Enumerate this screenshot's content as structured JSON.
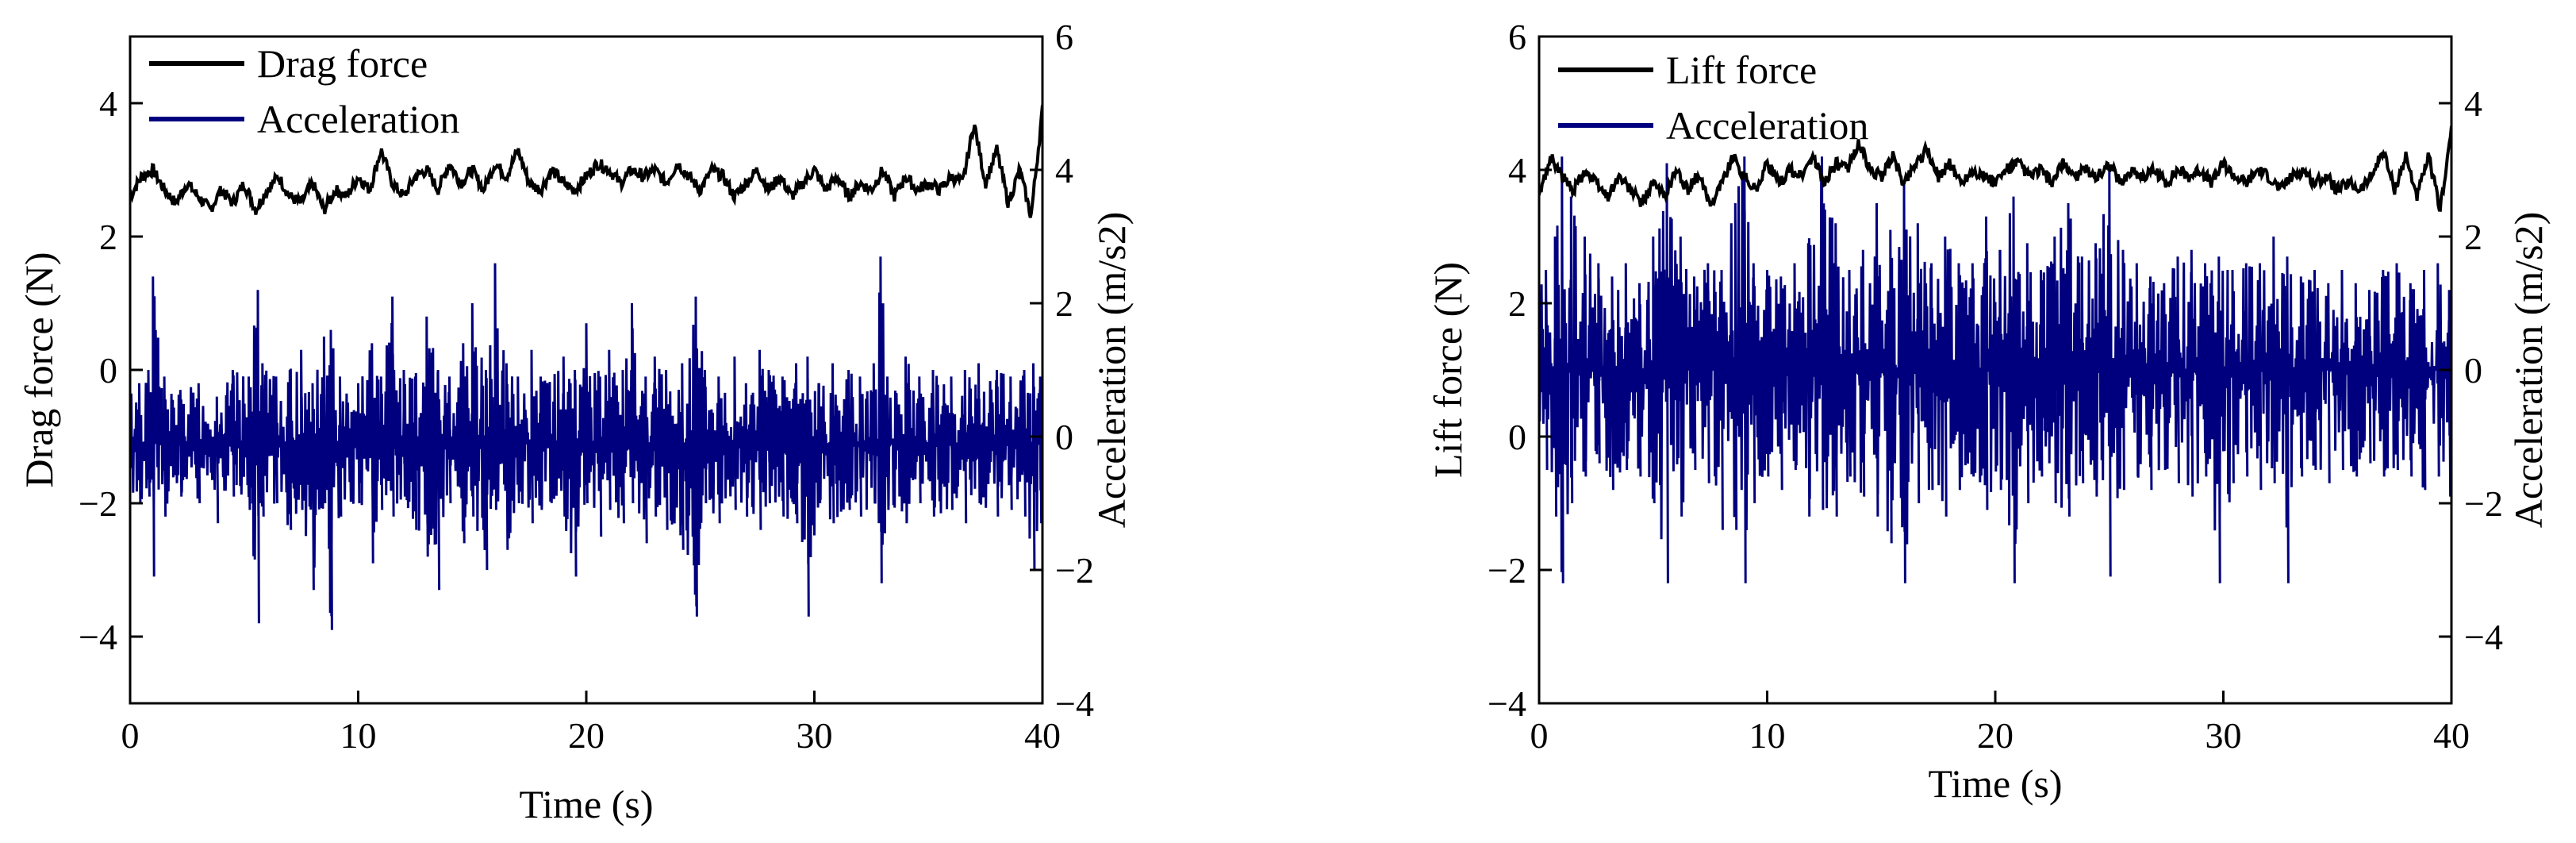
{
  "colors": {
    "force": "#000000",
    "acceleration": "#00007F"
  },
  "chart_data": [
    {
      "type": "line",
      "xlabel": "Time (s)",
      "ylabel_left": "Drag force (N)",
      "ylabel_right": "Acceleration (m/s2)",
      "xlim": [
        0,
        40
      ],
      "ylim_left": [
        -5,
        5
      ],
      "ylim_right": [
        -4,
        6
      ],
      "x_ticks": [
        0,
        10,
        20,
        30,
        40
      ],
      "y_ticks_left": [
        -4,
        -2,
        0,
        2,
        4
      ],
      "y_ticks_right": [
        -4,
        -2,
        0,
        2,
        4,
        6
      ],
      "legend_position": "top-left",
      "series": [
        {
          "name": "Drag force",
          "axis": "left",
          "color": "#000000",
          "x": [
            0,
            0.5,
            1,
            1.5,
            2,
            2.5,
            3,
            3.5,
            4,
            4.5,
            5,
            5.5,
            6,
            6.5,
            7,
            7.5,
            8,
            8.5,
            9,
            9.5,
            10,
            10.5,
            11,
            11.5,
            12,
            12.5,
            13,
            13.5,
            14,
            14.5,
            15,
            15.5,
            16,
            16.5,
            17,
            17.5,
            18,
            18.5,
            19,
            19.5,
            20,
            20.5,
            21,
            21.5,
            22,
            22.5,
            23,
            23.5,
            24,
            24.5,
            25,
            25.5,
            26,
            26.5,
            27,
            27.5,
            28,
            28.5,
            29,
            29.5,
            30,
            30.5,
            31,
            31.5,
            32,
            32.5,
            33,
            33.5,
            34,
            34.5,
            35,
            35.5,
            36,
            36.5,
            37,
            37.5,
            38,
            38.5,
            39,
            39.5,
            40
          ],
          "y": [
            2.6,
            2.9,
            3.0,
            2.7,
            2.5,
            2.8,
            2.6,
            2.4,
            2.7,
            2.5,
            2.8,
            2.4,
            2.7,
            2.9,
            2.6,
            2.5,
            2.8,
            2.4,
            2.7,
            2.6,
            2.9,
            2.7,
            3.3,
            2.8,
            2.6,
            2.9,
            3.0,
            2.7,
            3.1,
            2.8,
            3.0,
            2.7,
            3.1,
            2.9,
            3.3,
            2.8,
            2.7,
            3.0,
            2.8,
            2.7,
            2.9,
            3.1,
            3.0,
            2.8,
            3.0,
            2.9,
            3.0,
            2.8,
            3.1,
            2.9,
            2.7,
            3.0,
            2.9,
            2.6,
            2.8,
            3.0,
            2.7,
            2.9,
            2.6,
            2.8,
            3.0,
            2.7,
            2.9,
            2.6,
            2.8,
            2.7,
            3.0,
            2.6,
            2.9,
            2.7,
            2.8,
            2.7,
            2.9,
            2.8,
            3.7,
            2.8,
            3.3,
            2.5,
            3.0,
            2.3,
            3.9
          ]
        },
        {
          "name": "Acceleration",
          "axis": "right",
          "color": "#00007F",
          "baseline": -0.1,
          "x": [
            0.4,
            0.8,
            1.0,
            1.5,
            2.2,
            3.0,
            3.8,
            4.5,
            5.2,
            5.6,
            5.8,
            6.4,
            7.0,
            7.5,
            8.0,
            8.5,
            8.8,
            9.2,
            10.0,
            10.6,
            11.0,
            11.5,
            12.0,
            12.5,
            13.0,
            13.5,
            14.0,
            14.6,
            15.0,
            15.6,
            16.0,
            16.5,
            17.0,
            17.6,
            18.0,
            19.0,
            19.5,
            20.0,
            20.6,
            21.0,
            21.6,
            22.0,
            22.6,
            23.0,
            23.5,
            24.2,
            24.8,
            25.2,
            25.8,
            26.5,
            27.0,
            27.6,
            28.0,
            28.6,
            29.2,
            29.7,
            30.2,
            30.8,
            31.5,
            32.0,
            32.6,
            32.9,
            33.2,
            34.0,
            34.6,
            35.2,
            36.0,
            36.6,
            37.2,
            38.0,
            38.6,
            39.2,
            39.6,
            39.9
          ],
          "max": [
            0.8,
            1.0,
            2.4,
            0.9,
            0.7,
            0.8,
            0.6,
            1.0,
            0.9,
            2.2,
            1.1,
            0.9,
            1.0,
            1.3,
            0.8,
            1.5,
            1.6,
            0.9,
            0.8,
            1.4,
            0.9,
            2.1,
            1.0,
            0.9,
            1.8,
            1.0,
            0.9,
            1.4,
            2.0,
            1.0,
            2.6,
            1.1,
            0.9,
            1.3,
            0.9,
            1.2,
            1.0,
            1.7,
            0.9,
            1.3,
            1.0,
            2.0,
            0.9,
            1.2,
            1.0,
            1.1,
            2.1,
            1.0,
            0.9,
            1.2,
            0.8,
            1.3,
            1.0,
            0.9,
            1.1,
            1.2,
            0.8,
            1.1,
            1.0,
            0.9,
            1.1,
            2.7,
            0.9,
            1.2,
            0.9,
            1.0,
            0.9,
            1.0,
            1.1,
            1.0,
            0.9,
            1.0,
            1.1,
            0.9
          ],
          "min": [
            -1.0,
            -0.9,
            -2.1,
            -1.2,
            -0.9,
            -1.0,
            -1.3,
            -0.9,
            -1.1,
            -2.8,
            -1.2,
            -1.0,
            -1.4,
            -1.1,
            -2.3,
            -1.0,
            -2.9,
            -1.2,
            -1.0,
            -1.9,
            -1.1,
            -1.2,
            -0.9,
            -1.4,
            -1.8,
            -2.3,
            -1.0,
            -1.6,
            -1.2,
            -2.0,
            -1.1,
            -1.7,
            -1.0,
            -1.3,
            -1.1,
            -1.2,
            -2.1,
            -1.0,
            -1.5,
            -1.1,
            -1.3,
            -1.0,
            -1.6,
            -1.2,
            -1.4,
            -1.7,
            -2.7,
            -1.0,
            -1.3,
            -1.1,
            -1.2,
            -1.4,
            -1.0,
            -1.2,
            -1.3,
            -2.7,
            -1.0,
            -1.3,
            -1.1,
            -1.2,
            -1.0,
            -2.2,
            -1.1,
            -1.3,
            -1.0,
            -1.2,
            -1.1,
            -1.3,
            -1.0,
            -1.2,
            -1.1,
            -1.2,
            -2.0,
            -1.3
          ]
        }
      ]
    },
    {
      "type": "line",
      "xlabel": "Time (s)",
      "ylabel_left": "Lift force (N)",
      "ylabel_right": "Acceleration (m/s2)",
      "xlim": [
        0,
        40
      ],
      "ylim_left": [
        -4,
        6
      ],
      "ylim_right": [
        -5,
        5
      ],
      "x_ticks": [
        0,
        10,
        20,
        30,
        40
      ],
      "y_ticks_left": [
        -4,
        -2,
        0,
        2,
        4,
        6
      ],
      "y_ticks_right": [
        -4,
        -2,
        0,
        2,
        4
      ],
      "legend_position": "top-left",
      "series": [
        {
          "name": "Lift force",
          "axis": "left",
          "color": "#000000",
          "x": [
            0,
            0.5,
            1,
            1.5,
            2,
            2.5,
            3,
            3.5,
            4,
            4.5,
            5,
            5.5,
            6,
            6.5,
            7,
            7.5,
            8,
            8.5,
            9,
            9.5,
            10,
            10.5,
            11,
            11.5,
            12,
            12.5,
            13,
            13.5,
            14,
            14.5,
            15,
            15.5,
            16,
            16.5,
            17,
            17.5,
            18,
            18.5,
            19,
            19.5,
            20,
            20.5,
            21,
            21.5,
            22,
            22.5,
            23,
            23.5,
            24,
            24.5,
            25,
            25.5,
            26,
            26.5,
            27,
            27.5,
            28,
            28.5,
            29,
            29.5,
            30,
            30.5,
            31,
            31.5,
            32,
            32.5,
            33,
            33.5,
            34,
            34.5,
            35,
            35.5,
            36,
            36.5,
            37,
            37.5,
            38,
            38.5,
            39,
            39.5,
            40
          ],
          "y": [
            3.6,
            4.2,
            3.9,
            3.7,
            4.0,
            3.8,
            3.6,
            3.9,
            3.7,
            3.5,
            3.8,
            3.6,
            4.0,
            3.7,
            3.9,
            3.5,
            3.8,
            4.2,
            3.9,
            3.7,
            4.1,
            3.8,
            4.0,
            3.9,
            4.2,
            3.8,
            4.1,
            4.0,
            4.4,
            4.0,
            3.9,
            4.2,
            3.8,
            4.1,
            4.3,
            3.9,
            4.1,
            3.8,
            4.0,
            3.9,
            3.8,
            4.0,
            4.1,
            3.9,
            4.0,
            3.8,
            4.1,
            3.9,
            4.0,
            3.9,
            4.1,
            3.8,
            4.0,
            3.9,
            4.0,
            3.8,
            4.0,
            3.9,
            4.0,
            3.8,
            4.1,
            3.9,
            3.8,
            4.0,
            3.9,
            3.7,
            3.9,
            4.0,
            3.8,
            3.9,
            3.7,
            3.8,
            3.7,
            3.9,
            4.3,
            3.7,
            4.2,
            3.6,
            4.2,
            3.4,
            4.6
          ]
        },
        {
          "name": "Acceleration",
          "axis": "right",
          "color": "#00007F",
          "baseline": 0.0,
          "x": [
            0.3,
            0.7,
            1.0,
            1.4,
            2.0,
            2.6,
            3.2,
            3.8,
            4.4,
            5.0,
            5.6,
            6.2,
            6.8,
            7.4,
            8.0,
            8.6,
            9.0,
            9.4,
            10.0,
            10.6,
            11.2,
            11.8,
            12.4,
            13.0,
            13.6,
            14.2,
            14.8,
            15.4,
            16.0,
            16.6,
            17.2,
            17.8,
            18.4,
            19.0,
            19.6,
            20.2,
            20.8,
            21.4,
            22.0,
            22.6,
            23.2,
            23.8,
            24.4,
            25.0,
            25.6,
            26.2,
            26.8,
            27.4,
            28.0,
            28.6,
            29.2,
            29.8,
            30.4,
            31.0,
            31.6,
            32.2,
            32.8,
            33.4,
            34.0,
            34.6,
            35.2,
            35.8,
            36.4,
            37.0,
            37.6,
            38.2,
            38.8,
            39.4,
            39.9
          ],
          "max": [
            1.5,
            2.0,
            3.2,
            2.6,
            2.0,
            1.6,
            1.4,
            1.6,
            1.3,
            2.0,
            3.1,
            2.0,
            1.4,
            1.6,
            1.5,
            2.5,
            3.2,
            1.6,
            1.5,
            1.4,
            1.6,
            1.9,
            3.2,
            2.2,
            1.5,
            1.8,
            2.5,
            2.1,
            2.8,
            2.2,
            1.6,
            2.0,
            1.6,
            1.6,
            2.3,
            1.8,
            2.6,
            1.9,
            1.5,
            2.0,
            2.5,
            1.7,
            1.9,
            3.0,
            1.8,
            1.6,
            1.4,
            1.3,
            1.7,
            1.8,
            1.6,
            1.7,
            1.5,
            1.6,
            1.6,
            2.0,
            1.7,
            1.4,
            1.5,
            1.3,
            1.5,
            1.3,
            1.2,
            1.5,
            1.6,
            1.3,
            1.5,
            1.6,
            1.2
          ],
          "min": [
            -1.5,
            -2.2,
            -3.2,
            -2.0,
            -1.6,
            -1.4,
            -1.8,
            -1.5,
            -1.6,
            -2.0,
            -3.2,
            -2.2,
            -1.5,
            -1.7,
            -2.4,
            -2.4,
            -3.2,
            -2.0,
            -1.6,
            -1.8,
            -1.5,
            -2.2,
            -2.1,
            -2.2,
            -1.6,
            -1.9,
            -2.2,
            -2.6,
            -3.2,
            -2.0,
            -1.8,
            -2.2,
            -1.8,
            -1.6,
            -2.1,
            -1.8,
            -3.2,
            -2.0,
            -1.6,
            -2.0,
            -2.2,
            -1.7,
            -1.9,
            -3.1,
            -1.8,
            -1.6,
            -1.8,
            -1.5,
            -1.7,
            -1.9,
            -1.6,
            -3.2,
            -1.7,
            -1.6,
            -1.8,
            -1.7,
            -3.2,
            -1.6,
            -1.5,
            -1.7,
            -1.5,
            -1.6,
            -1.4,
            -1.6,
            -1.5,
            -1.6,
            -1.8,
            -1.6,
            -1.9
          ]
        }
      ]
    }
  ]
}
